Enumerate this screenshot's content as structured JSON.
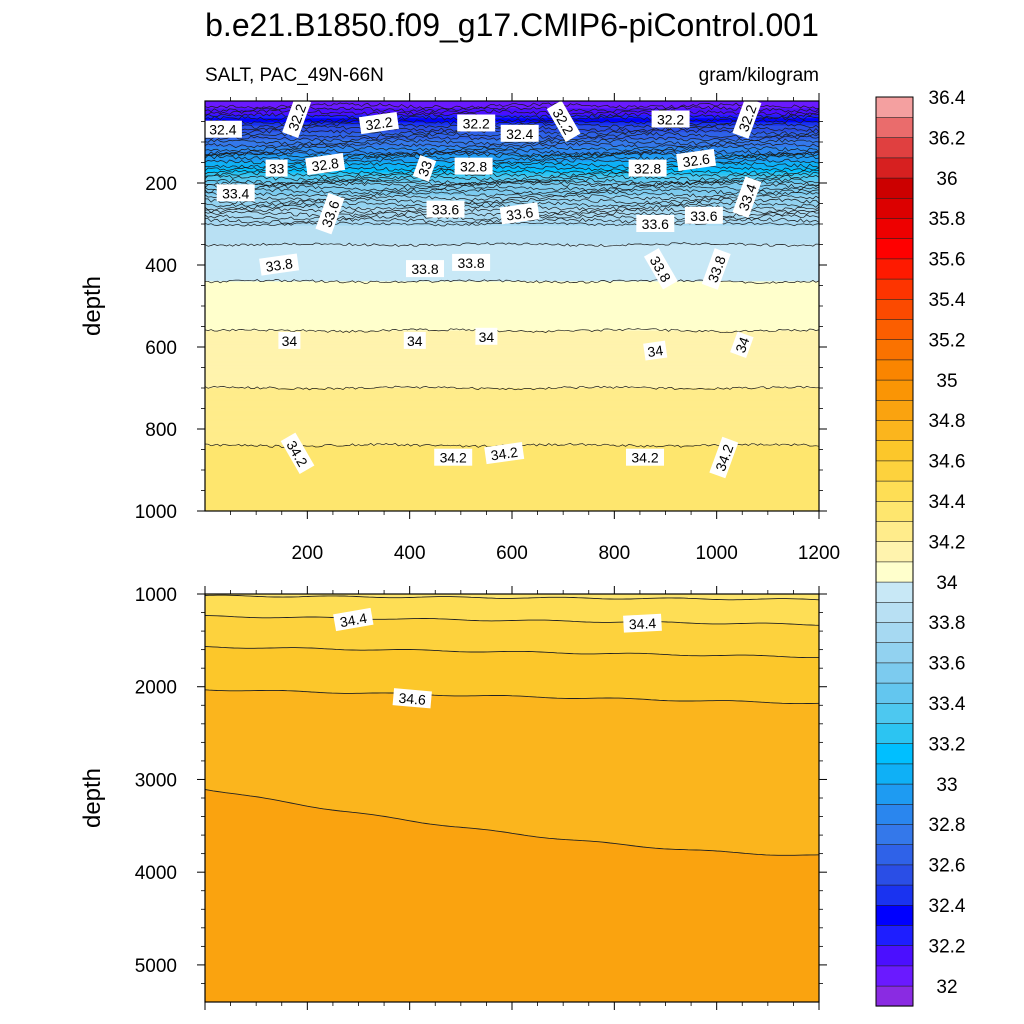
{
  "chart_data": {
    "type": "contour",
    "title": "b.e21.B1850.f09_g17.CMIP6-piControl.001",
    "left_string": "SALT, PAC_49N-66N",
    "right_string": "gram/kilogram",
    "variable": "SALT",
    "units": "gram/kilogram",
    "colorbar": {
      "tick_labels": [
        "32",
        "32.2",
        "32.4",
        "32.6",
        "32.8",
        "33",
        "33.2",
        "33.4",
        "33.6",
        "33.8",
        "34",
        "34.2",
        "34.4",
        "34.6",
        "34.8",
        "35",
        "35.2",
        "35.4",
        "35.6",
        "35.8",
        "36",
        "36.2",
        "36.4"
      ],
      "levels_min": 31.9,
      "levels_step": 0.1,
      "colors": [
        "#8a2be2",
        "#6a1aff",
        "#4b0fff",
        "#1e1eff",
        "#0000ff",
        "#1a33f0",
        "#2a4ee6",
        "#2f62e8",
        "#3478ea",
        "#2a86ee",
        "#1e9bf2",
        "#0fb0f6",
        "#00bfff",
        "#2cc4f2",
        "#4dc8f0",
        "#63c6ef",
        "#7ccbef",
        "#92d2f0",
        "#a6d9f2",
        "#b8e0f3",
        "#c8e8f6",
        "#ffffcc",
        "#fff3ad",
        "#ffec8b",
        "#fee66e",
        "#fede55",
        "#fdd23d",
        "#fcc72a",
        "#fbb51d",
        "#faa30f",
        "#fa9505",
        "#fa8500",
        "#fa7200",
        "#fb5e00",
        "#fb4a00",
        "#fd3400",
        "#fe1a00",
        "#ff0000",
        "#ee0000",
        "#dc0000",
        "#cc0000",
        "#d72020",
        "#e04040",
        "#ea6c6c",
        "#f4a0a0"
      ]
    },
    "panels": [
      {
        "name": "upper",
        "ylabel": "depth",
        "ylim": [
          1000,
          0
        ],
        "xlim": [
          0,
          1200
        ],
        "xticks": [
          200,
          400,
          600,
          800,
          1000,
          1200
        ],
        "yticks": [
          200,
          400,
          600,
          800,
          1000
        ],
        "contours": [
          {
            "value": 34.2,
            "depth": 840
          },
          {
            "value": 34.1,
            "depth": 700
          },
          {
            "value": 34.0,
            "depth": 560
          },
          {
            "value": 33.9,
            "depth": 440
          },
          {
            "value": 33.8,
            "depth": 350
          },
          {
            "value": 33.6,
            "depth": 260
          },
          {
            "value": 33.4,
            "depth": 200
          },
          {
            "value": 32.8,
            "depth": 130
          },
          {
            "value": 32.4,
            "depth": 60
          }
        ],
        "contour_labels": [
          {
            "text": "32.2",
            "x": 180,
            "d": 40
          },
          {
            "text": "32.2",
            "x": 340,
            "d": 55
          },
          {
            "text": "32.2",
            "x": 530,
            "d": 55
          },
          {
            "text": "32.2",
            "x": 700,
            "d": 50
          },
          {
            "text": "32.2",
            "x": 910,
            "d": 45
          },
          {
            "text": "32.2",
            "x": 1060,
            "d": 42
          },
          {
            "text": "32.4",
            "x": 35,
            "d": 70
          },
          {
            "text": "32.4",
            "x": 615,
            "d": 80
          },
          {
            "text": "33",
            "x": 140,
            "d": 165
          },
          {
            "text": "32.8",
            "x": 235,
            "d": 155
          },
          {
            "text": "33",
            "x": 430,
            "d": 165
          },
          {
            "text": "32.8",
            "x": 525,
            "d": 160
          },
          {
            "text": "32.8",
            "x": 865,
            "d": 165
          },
          {
            "text": "32.6",
            "x": 960,
            "d": 145
          },
          {
            "text": "33.4",
            "x": 60,
            "d": 225
          },
          {
            "text": "33.6",
            "x": 245,
            "d": 275
          },
          {
            "text": "33.6",
            "x": 470,
            "d": 265
          },
          {
            "text": "33.6",
            "x": 615,
            "d": 275
          },
          {
            "text": "33.6",
            "x": 880,
            "d": 300
          },
          {
            "text": "33.6",
            "x": 975,
            "d": 280
          },
          {
            "text": "33.4",
            "x": 1060,
            "d": 235
          },
          {
            "text": "33.8",
            "x": 145,
            "d": 400
          },
          {
            "text": "33.8",
            "x": 430,
            "d": 410
          },
          {
            "text": "33.8",
            "x": 520,
            "d": 395
          },
          {
            "text": "33.8",
            "x": 890,
            "d": 410
          },
          {
            "text": "33.8",
            "x": 1000,
            "d": 410
          },
          {
            "text": "34",
            "x": 165,
            "d": 585
          },
          {
            "text": "34",
            "x": 410,
            "d": 585
          },
          {
            "text": "34",
            "x": 550,
            "d": 575
          },
          {
            "text": "34",
            "x": 880,
            "d": 610
          },
          {
            "text": "34",
            "x": 1050,
            "d": 595
          },
          {
            "text": "34.2",
            "x": 180,
            "d": 860
          },
          {
            "text": "34.2",
            "x": 485,
            "d": 870
          },
          {
            "text": "34.2",
            "x": 585,
            "d": 860
          },
          {
            "text": "34.2",
            "x": 860,
            "d": 870
          },
          {
            "text": "34.2",
            "x": 1015,
            "d": 870
          }
        ]
      },
      {
        "name": "lower",
        "ylabel": "depth",
        "ylim": [
          5400,
          1000
        ],
        "xlim": [
          0,
          1200
        ],
        "yticks": [
          1000,
          2000,
          3000,
          4000,
          5000
        ],
        "contours": [
          {
            "value": 34.3,
            "d0": 1020,
            "d1": 1060
          },
          {
            "value": 34.4,
            "d0": 1240,
            "d1": 1330
          },
          {
            "value": 34.5,
            "d0": 1570,
            "d1": 1680
          },
          {
            "value": 34.6,
            "d0": 2030,
            "d1": 2180
          },
          {
            "value": 34.7,
            "d0": 3100,
            "d1": 3820
          }
        ],
        "contour_labels": [
          {
            "text": "34.4",
            "x": 290,
            "d": 1280
          },
          {
            "text": "34.4",
            "x": 855,
            "d": 1320
          },
          {
            "text": "34.6",
            "x": 405,
            "d": 2130
          }
        ]
      }
    ]
  }
}
